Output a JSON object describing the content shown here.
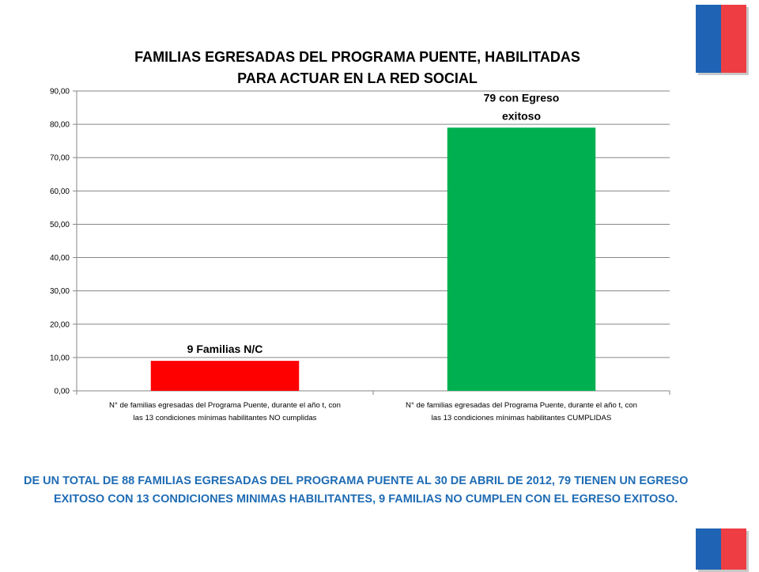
{
  "colors": {
    "flag_blue": "#1f64b4",
    "flag_red": "#ee3e44",
    "summary_text": "#1f6cb4"
  },
  "chart_data": {
    "type": "bar",
    "title_lines": [
      "FAMILIAS EGRESADAS DEL PROGRAMA PUENTE, HABILITADAS",
      "PARA ACTUAR EN LA RED SOCIAL"
    ],
    "categories": [
      [
        "N° de familias egresadas del Programa Puente, durante el año t, con",
        "las 13 condiciones mínimas habilitantes NO cumplidas"
      ],
      [
        "N° de familias egresadas del Programa Puente, durante el año t, con",
        "las 13 condiciones mínimas habilitantes CUMPLIDAS"
      ]
    ],
    "values": [
      9,
      79
    ],
    "bar_colors": [
      "#ff0000",
      "#00b050"
    ],
    "data_labels": [
      [
        "9 Familias N/C"
      ],
      [
        "79 con Egreso",
        "exitoso"
      ]
    ],
    "ylim": [
      0,
      90
    ],
    "ytick_step": 10,
    "ytick_labels": [
      "0,00",
      "10,00",
      "20,00",
      "30,00",
      "40,00",
      "50,00",
      "60,00",
      "70,00",
      "80,00",
      "90,00"
    ],
    "grid": true,
    "legend": "none"
  },
  "summary": {
    "line1": "DE UN TOTAL DE  88 FAMILIAS EGRESADAS DEL PROGRAMA PUENTE AL 30 DE ABRIL DE 2012, 79 TIENEN UN EGRESO",
    "line2": "EXITOSO CON 13 CONDICIONES MINIMAS HABILITANTES, 9 FAMILIAS NO CUMPLEN CON EL EGRESO EXITOSO."
  }
}
